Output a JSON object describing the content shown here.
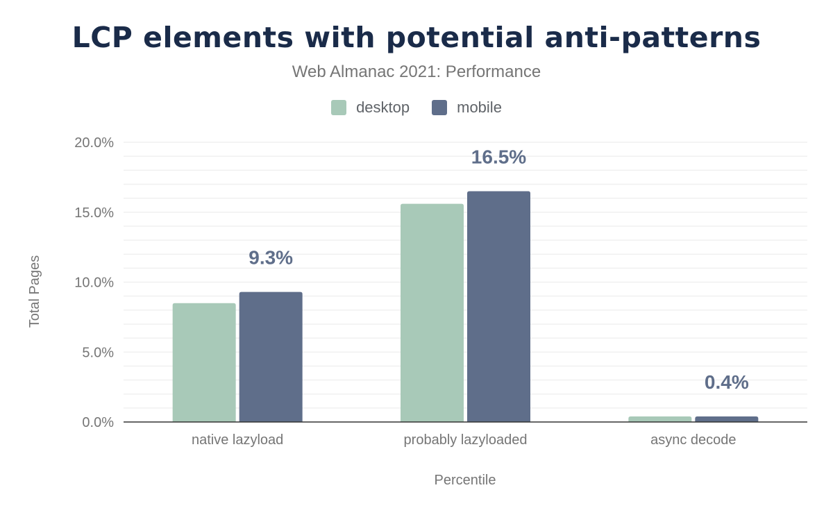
{
  "chart_data": {
    "type": "bar",
    "title": "LCP elements with potential anti-patterns",
    "subtitle": "Web Almanac 2021: Performance",
    "xlabel": "Percentile",
    "ylabel": "Total Pages",
    "categories": [
      "native lazyload",
      "probably lazyloaded",
      "async decode"
    ],
    "series": [
      {
        "name": "desktop",
        "color": "#a8c9b8",
        "values": [
          8.5,
          15.6,
          0.4
        ]
      },
      {
        "name": "mobile",
        "color": "#5f6e8a",
        "values": [
          9.3,
          16.5,
          0.4
        ]
      }
    ],
    "data_labels": {
      "series": "mobile",
      "labels": [
        "9.3%",
        "16.5%",
        "0.4%"
      ]
    },
    "ylim": [
      0,
      20
    ],
    "yticks": [
      "0.0%",
      "5.0%",
      "10.0%",
      "15.0%",
      "20.0%"
    ],
    "ytick_values": [
      0,
      5,
      10,
      15,
      20
    ],
    "minor_grid_step": 1,
    "grid": true,
    "legend_position": "top"
  }
}
